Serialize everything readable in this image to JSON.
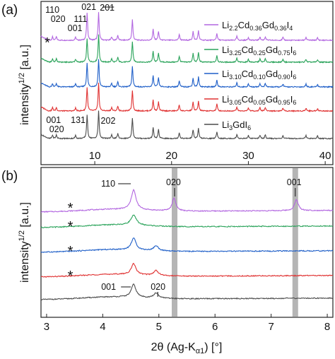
{
  "colors": {
    "purple": "#b266e0",
    "green": "#2aa35a",
    "blue": "#1f5fc8",
    "red": "#e03232",
    "gray": "#4b4b4b",
    "band": "#b5b5b5"
  },
  "chart_data": [
    {
      "panel_label": "(a)",
      "type": "line",
      "ylabel": "intensity",
      "ylabel_sup": "1/2",
      "ylabel_unit": " [a.u.]",
      "xlim": [
        3,
        41
      ],
      "xticks": [
        10,
        20,
        30,
        40
      ],
      "xtick_labels": [
        "10",
        "20",
        "30",
        "40"
      ],
      "legend_position": "right",
      "series": [
        {
          "name": "Li2.2Cd0.36Gd0.36I4",
          "name_parts": [
            [
              "Li",
              false
            ],
            [
              "2.2",
              true
            ],
            [
              "Cd",
              false
            ],
            [
              "0.36",
              true
            ],
            [
              "Gd",
              false
            ],
            [
              "0.36",
              true
            ],
            [
              "I",
              false
            ],
            [
              "4",
              true
            ]
          ],
          "color_key": "purple",
          "offset": 4
        },
        {
          "name": "Li3.25Cd0.25Gd0.75I6",
          "name_parts": [
            [
              "Li",
              false
            ],
            [
              "3.25",
              true
            ],
            [
              "Cd",
              false
            ],
            [
              "0.25",
              true
            ],
            [
              "Gd",
              false
            ],
            [
              "0.75",
              true
            ],
            [
              "I",
              false
            ],
            [
              "6",
              true
            ]
          ],
          "color_key": "green",
          "offset": 3
        },
        {
          "name": "Li3.10Cd0.10Gd0.90I6",
          "name_parts": [
            [
              "Li",
              false
            ],
            [
              "3.10",
              true
            ],
            [
              "Cd",
              false
            ],
            [
              "0.10",
              true
            ],
            [
              "Gd",
              false
            ],
            [
              "0.90",
              true
            ],
            [
              "I",
              false
            ],
            [
              "6",
              true
            ]
          ],
          "color_key": "blue",
          "offset": 2
        },
        {
          "name": "Li3.05Cd0.05Gd0.95I6",
          "name_parts": [
            [
              "Li",
              false
            ],
            [
              "3.05",
              true
            ],
            [
              "Cd",
              false
            ],
            [
              "0.05",
              true
            ],
            [
              "Gd",
              false
            ],
            [
              "0.95",
              true
            ],
            [
              "I",
              false
            ],
            [
              "6",
              true
            ]
          ],
          "color_key": "red",
          "offset": 1
        },
        {
          "name": "Li3GdI6",
          "name_parts": [
            [
              "Li",
              false
            ],
            [
              "3",
              true
            ],
            [
              "Gd",
              false
            ],
            [
              "I",
              false
            ],
            [
              "6",
              true
            ]
          ],
          "color_key": "gray",
          "offset": 0
        }
      ],
      "peaks": [
        {
          "x": 4.5,
          "h": 0.35,
          "w": 0.08
        },
        {
          "x": 5.0,
          "h": 0.35,
          "w": 0.08
        },
        {
          "x": 7.5,
          "h": 0.3,
          "w": 0.08
        },
        {
          "x": 9.0,
          "h": 2.4,
          "w": 0.08
        },
        {
          "x": 10.5,
          "h": 2.8,
          "w": 0.08
        },
        {
          "x": 12.2,
          "h": 0.35,
          "w": 0.08
        },
        {
          "x": 13.0,
          "h": 0.5,
          "w": 0.08
        },
        {
          "x": 14.9,
          "h": 2.1,
          "w": 0.08
        },
        {
          "x": 17.6,
          "h": 1.1,
          "w": 0.08
        },
        {
          "x": 18.3,
          "h": 0.9,
          "w": 0.08
        },
        {
          "x": 21.0,
          "h": 0.6,
          "w": 0.08
        },
        {
          "x": 22.8,
          "h": 0.9,
          "w": 0.08
        },
        {
          "x": 23.5,
          "h": 1.0,
          "w": 0.08
        },
        {
          "x": 25.9,
          "h": 0.7,
          "w": 0.08
        },
        {
          "x": 28.5,
          "h": 0.4,
          "w": 0.08
        },
        {
          "x": 30.0,
          "h": 0.3,
          "w": 0.08
        },
        {
          "x": 31.5,
          "h": 0.35,
          "w": 0.08
        },
        {
          "x": 32.2,
          "h": 0.35,
          "w": 0.08
        },
        {
          "x": 34.5,
          "h": 0.3,
          "w": 0.08
        },
        {
          "x": 37.5,
          "h": 0.3,
          "w": 0.08
        },
        {
          "x": 39.0,
          "h": 0.25,
          "w": 0.08
        }
      ],
      "annotations_top": [
        {
          "text": "110",
          "x": 4.3
        },
        {
          "text": "020",
          "x": 5.0
        },
        {
          "text": "111",
          "x": 8.0
        },
        {
          "text": "001",
          "x": 7.2
        },
        {
          "text": "021",
          "x": 9.0
        },
        {
          "text": "201",
          "x": 11.4
        }
      ],
      "annotations_bottom": [
        {
          "text": "001",
          "x": 4.6
        },
        {
          "text": "020",
          "x": 5.0
        },
        {
          "text": "131",
          "x": 7.8
        },
        {
          "text": "202",
          "x": 11.7
        }
      ],
      "star": "*"
    },
    {
      "panel_label": "(b)",
      "type": "line",
      "xlabel_prefix": "2θ (Ag-K",
      "xlabel_sub": "α1",
      "xlabel_suffix": ") [°]",
      "ylabel": "intensity",
      "ylabel_sup": "1/2",
      "ylabel_unit": " [a.u.]",
      "xlim": [
        2.9,
        8.1
      ],
      "xticks": [
        3,
        4,
        5,
        6,
        7,
        8
      ],
      "xtick_labels": [
        "3",
        "4",
        "5",
        "6",
        "7",
        "8"
      ],
      "bands": [
        5.28,
        7.43
      ],
      "series": [
        {
          "color_key": "purple",
          "offset": 4,
          "peaks": [
            [
              4.55,
              1.0,
              0.05
            ],
            [
              5.27,
              0.65,
              0.04
            ],
            [
              7.45,
              0.55,
              0.04
            ]
          ]
        },
        {
          "color_key": "green",
          "offset": 3,
          "peaks": [
            [
              4.55,
              0.5,
              0.06
            ]
          ]
        },
        {
          "color_key": "blue",
          "offset": 2,
          "peaks": [
            [
              4.55,
              0.6,
              0.05
            ],
            [
              4.95,
              0.25,
              0.05
            ]
          ]
        },
        {
          "color_key": "red",
          "offset": 1,
          "peaks": [
            [
              4.55,
              0.55,
              0.05
            ],
            [
              4.95,
              0.25,
              0.05
            ]
          ]
        },
        {
          "color_key": "gray",
          "offset": 0,
          "peaks": [
            [
              4.55,
              0.65,
              0.05
            ],
            [
              4.95,
              0.25,
              0.05
            ]
          ]
        }
      ],
      "annotations": [
        {
          "text": "110",
          "x": 4.4
        },
        {
          "text": "020",
          "x": 5.28
        },
        {
          "text": "001",
          "x": 7.43
        },
        {
          "text": "001",
          "x": 4.3
        },
        {
          "text": "020",
          "x": 4.98
        }
      ],
      "stars": [
        "*",
        "*",
        "*",
        "*"
      ]
    }
  ]
}
